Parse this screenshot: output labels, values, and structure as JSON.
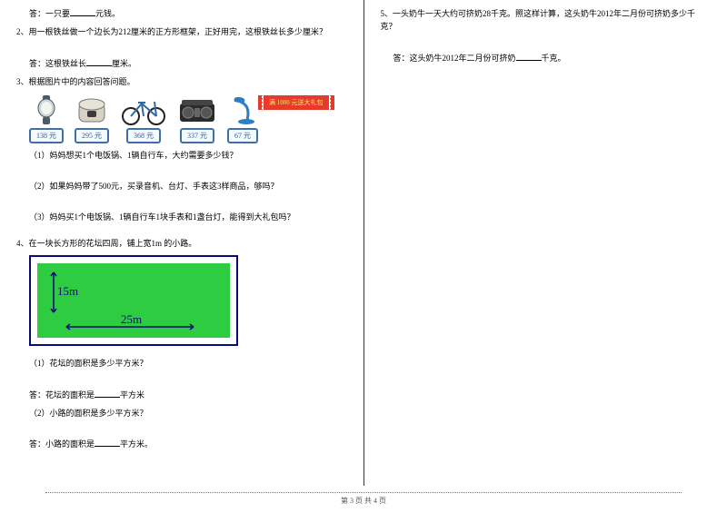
{
  "left": {
    "ans1_prefix": "答：一只要",
    "ans1_suffix": "元钱。",
    "q2": "2、用一根铁丝做一个边长为212厘米的正方形框架，正好用完，这根铁丝长多少厘米？",
    "ans2_prefix": "答：这根铁丝长",
    "ans2_suffix": "厘米。",
    "q3": "3、根据图片中的内容回答问题。",
    "gift": "满 1000 元送大礼包",
    "products": [
      {
        "name": "watch",
        "price": "138 元"
      },
      {
        "name": "cooker",
        "price": "295 元"
      },
      {
        "name": "bike",
        "price": "368 元"
      },
      {
        "name": "radio",
        "price": "337 元"
      },
      {
        "name": "lamp",
        "price": "67 元"
      }
    ],
    "q3_1": "（1）妈妈想买1个电饭锅、1辆自行车，大约需要多少钱？",
    "q3_2": "（2）如果妈妈带了500元，买录音机、台灯、手表这3样商品，够吗？",
    "q3_3": "（3）妈妈买1个电饭锅、1辆自行车1块手表和1盏台灯，能得到大礼包吗？",
    "q4": "4、在一块长方形的花坛四周，铺上宽1m 的小路。",
    "diagram": {
      "outer_w": 230,
      "outer_h": 100,
      "border_color": "#0a0a7a",
      "inner_color": "#2ecc40",
      "height_label": "15m",
      "width_label": "25m",
      "label_color": "#0a0a7a"
    },
    "q4_1": "（1）花坛的面积是多少平方米？",
    "ans4_1_prefix": "答：花坛的面积是",
    "ans4_1_suffix": "平方米",
    "q4_2": "（2）小路的面积是多少平方米？",
    "ans4_2_prefix": "答：小路的面积是",
    "ans4_2_suffix": "平方米。"
  },
  "right": {
    "q5": "5、一头奶牛一天大约可挤奶28千克。照这样计算，这头奶牛2012年二月份可挤奶多少千克？",
    "ans5_prefix": "答：这头奶牛2012年二月份可挤奶",
    "ans5_suffix": "千克。"
  },
  "footer": "第 3 页 共 4 页"
}
